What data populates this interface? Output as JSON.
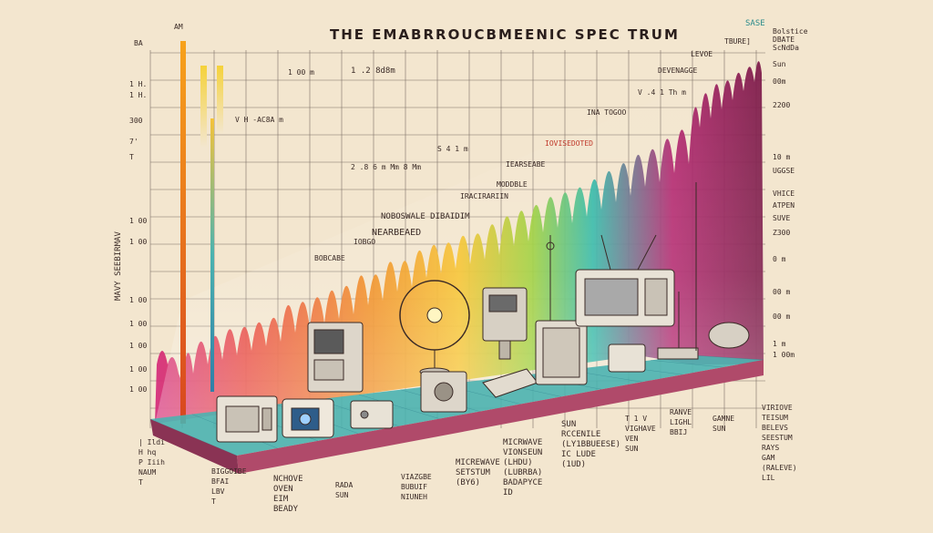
{
  "title": "THE  EMABRROUCBMEENIC SPEC TRUM",
  "top_right_badge": "SASE",
  "corner_top_left": "BA",
  "am_marker": "AM",
  "vertical_axis_label": "MAVY SEEBIRMAV",
  "colors": {
    "background": "#f3e6cf",
    "grid": "#4a3c3a",
    "platform_top": "#4bb3b0",
    "platform_front": "#b04a6a",
    "red_label": "#c0392b"
  },
  "left_axis_ticks": [
    "1 H.",
    "1 H.",
    "300",
    "7'",
    "T",
    "1 00",
    "1 00",
    "1 00",
    "1 00",
    "1 00",
    "1 00",
    "1 00"
  ],
  "right_axis_ticks": [
    "Sun",
    "00m",
    "2200",
    "10 m",
    "UGGSE",
    "VHICE",
    "ATPEN",
    "SUVE",
    "Z300",
    "0 m",
    "00 m",
    "00 m",
    "1 m",
    "1 00m"
  ],
  "right_top_notes": [
    "TBURE]",
    "Bolstice",
    "DBATE",
    "ScNdDa"
  ],
  "plot_labels": [
    "1 00 m",
    "1 .2  8d8m",
    "V H -AC8A m",
    "2 .8 6  m  Mm    8  Mm",
    "S 4 1 m",
    "INA TOGOO",
    "V .4 1 Th m",
    "DEVENAGGE",
    "LEVOE",
    "IOVISEDOTED",
    "IEARSEABE",
    "MODDBLE",
    "IRACIRARIIN",
    "NOBOSWALE  DIBAIDIM",
    "NEARBEAED",
    "BOBCABE",
    "IOBGO"
  ],
  "bottom_labels": {
    "col1": [
      "| Ildi",
      "H hq",
      "P Iiih",
      "NAUM",
      "T"
    ],
    "col2": [
      "BIGGOIBE",
      "BFAI",
      "LBV",
      "T"
    ],
    "c3": [
      "NCHOVE",
      "OVEN",
      "EIM",
      "BEADY"
    ],
    "c4": [
      "RADA",
      "SUN"
    ],
    "c5": [
      "VIAZGBE",
      "BUBUIF",
      "NIUNEH"
    ],
    "c6": [
      "MICREWAVE",
      "SETSTUM",
      "(BY6)"
    ],
    "c7": [
      "MICRWAVE",
      "VIONSEUN",
      "(LHDU)",
      "(LUBRBA)",
      "BADAPYCE",
      "ID"
    ],
    "c8": [
      "SUN",
      "RCCENILE",
      "(LY1BBUEESE)",
      "IC LUDE",
      "(1UD)"
    ],
    "c9": [
      "T 1 V",
      "VIGHAVE",
      "VEN",
      "SUN"
    ],
    "c10": [
      "RANVE",
      "LIGHL",
      "BBIJ"
    ],
    "c11": [
      "GAMNE",
      "SUN"
    ],
    "c12": [
      "VIRIOVE",
      "TEISUM",
      "BELEVS",
      "SEESTUM",
      "RAYS",
      "GAM",
      "(RALEVE)",
      "LIL"
    ]
  }
}
